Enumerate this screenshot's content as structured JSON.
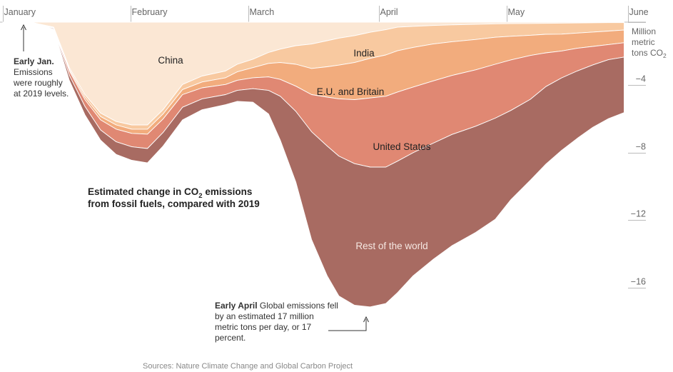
{
  "chart_data": {
    "type": "area",
    "title_line1": "Estimated change in CO",
    "title_sub": "2",
    "title_line1_end": " emissions",
    "title_line2": "from fossil fuels, compared with 2019",
    "x_months": [
      "January",
      "February",
      "March",
      "April",
      "May",
      "June"
    ],
    "y_unit_lines": [
      "Million",
      "metric",
      "tons CO"
    ],
    "y_unit_sub": "2",
    "y_ticks": [
      {
        "value": -4,
        "label": "−4"
      },
      {
        "value": -8,
        "label": "−8"
      },
      {
        "value": -12,
        "label": "−12"
      },
      {
        "value": -16,
        "label": "−16"
      }
    ],
    "ylim": [
      -18,
      0
    ],
    "x_day_range": [
      0,
      160
    ],
    "x": [
      0,
      8,
      13,
      17,
      21,
      25,
      29,
      33,
      37,
      41,
      46,
      51,
      57,
      60,
      64,
      68,
      71,
      75,
      79,
      83,
      86,
      90,
      94,
      98,
      101,
      105,
      110,
      115,
      121,
      126,
      130,
      135,
      139,
      143,
      147,
      151,
      155,
      159
    ],
    "series": [
      {
        "name": "China",
        "label": "China",
        "color": "#fbe7d4",
        "values": [
          0,
          -0.05,
          -0.3,
          -2.7,
          -4.3,
          -5.4,
          -5.9,
          -6.1,
          -6.1,
          -5.2,
          -3.7,
          -3.2,
          -2.9,
          -2.5,
          -2.2,
          -1.8,
          -1.6,
          -1.4,
          -1.3,
          -1.1,
          -0.95,
          -0.8,
          -0.6,
          -0.45,
          -0.3,
          -0.25,
          -0.2,
          -0.16,
          -0.13,
          -0.1,
          -0.09,
          -0.08,
          -0.07,
          -0.06,
          -0.05,
          -0.04,
          -0.03,
          -0.02
        ]
      },
      {
        "name": "India",
        "label": "India",
        "color": "#f8c9a0",
        "values": [
          0,
          0,
          -0.02,
          -0.1,
          -0.15,
          -0.2,
          -0.2,
          -0.25,
          -0.25,
          -0.25,
          -0.3,
          -0.35,
          -0.4,
          -0.45,
          -0.5,
          -0.65,
          -0.8,
          -1.1,
          -1.45,
          -1.55,
          -1.6,
          -1.6,
          -1.55,
          -1.5,
          -1.4,
          -1.25,
          -1.1,
          -1.0,
          -0.9,
          -0.8,
          -0.75,
          -0.7,
          -0.65,
          -0.65,
          -0.6,
          -0.55,
          -0.5,
          -0.45
        ]
      },
      {
        "name": "E.U. and Britain",
        "label": "E.U. and Britain",
        "color": "#f2ac7d",
        "values": [
          0,
          0,
          -0.02,
          -0.1,
          -0.15,
          -0.2,
          -0.25,
          -0.25,
          -0.3,
          -0.3,
          -0.3,
          -0.35,
          -0.4,
          -0.5,
          -0.6,
          -0.8,
          -1.0,
          -1.3,
          -1.55,
          -1.8,
          -2.0,
          -2.2,
          -2.35,
          -2.45,
          -2.45,
          -2.35,
          -2.2,
          -2.0,
          -1.8,
          -1.6,
          -1.4,
          -1.2,
          -1.1,
          -1.0,
          -0.9,
          -0.85,
          -0.8,
          -0.75
        ]
      },
      {
        "name": "United States",
        "label": "United States",
        "color": "#e08873",
        "values": [
          0,
          0,
          -0.03,
          -0.25,
          -0.4,
          -0.6,
          -0.75,
          -0.8,
          -0.85,
          -0.8,
          -0.75,
          -0.65,
          -0.6,
          -0.6,
          -0.65,
          -0.8,
          -1.0,
          -1.5,
          -2.2,
          -2.9,
          -3.4,
          -3.8,
          -4.1,
          -4.2,
          -4.1,
          -3.9,
          -3.7,
          -3.5,
          -3.35,
          -3.2,
          -3.0,
          -2.6,
          -2.0,
          -1.6,
          -1.35,
          -1.1,
          -0.9,
          -0.85
        ]
      },
      {
        "name": "Rest of the world",
        "label": "Rest of the world",
        "color": "#a86b62",
        "values": [
          0,
          0,
          -0.05,
          -0.3,
          -0.5,
          -0.6,
          -0.75,
          -0.8,
          -0.85,
          -0.8,
          -0.75,
          -0.65,
          -0.6,
          -0.65,
          -0.8,
          -1.4,
          -2.6,
          -4.2,
          -6.4,
          -7.7,
          -8.3,
          -8.4,
          -8.3,
          -8.1,
          -7.8,
          -7.3,
          -6.9,
          -6.6,
          -6.3,
          -6.0,
          -5.3,
          -4.8,
          -4.6,
          -4.3,
          -4.0,
          -3.7,
          -3.5,
          -3.3
        ]
      }
    ],
    "annotations": [
      {
        "bold": "Early Jan.",
        "lines": [
          "Emissions",
          "were roughly",
          "at 2019 levels."
        ]
      },
      {
        "bold": "Early April",
        "line1_rest": " Global emissions fell",
        "lines": [
          "by an estimated 17 million",
          "metric tons per day, or 17",
          "percent."
        ]
      }
    ],
    "source": "Sources: Nature Climate Change and Global Carbon Project"
  }
}
